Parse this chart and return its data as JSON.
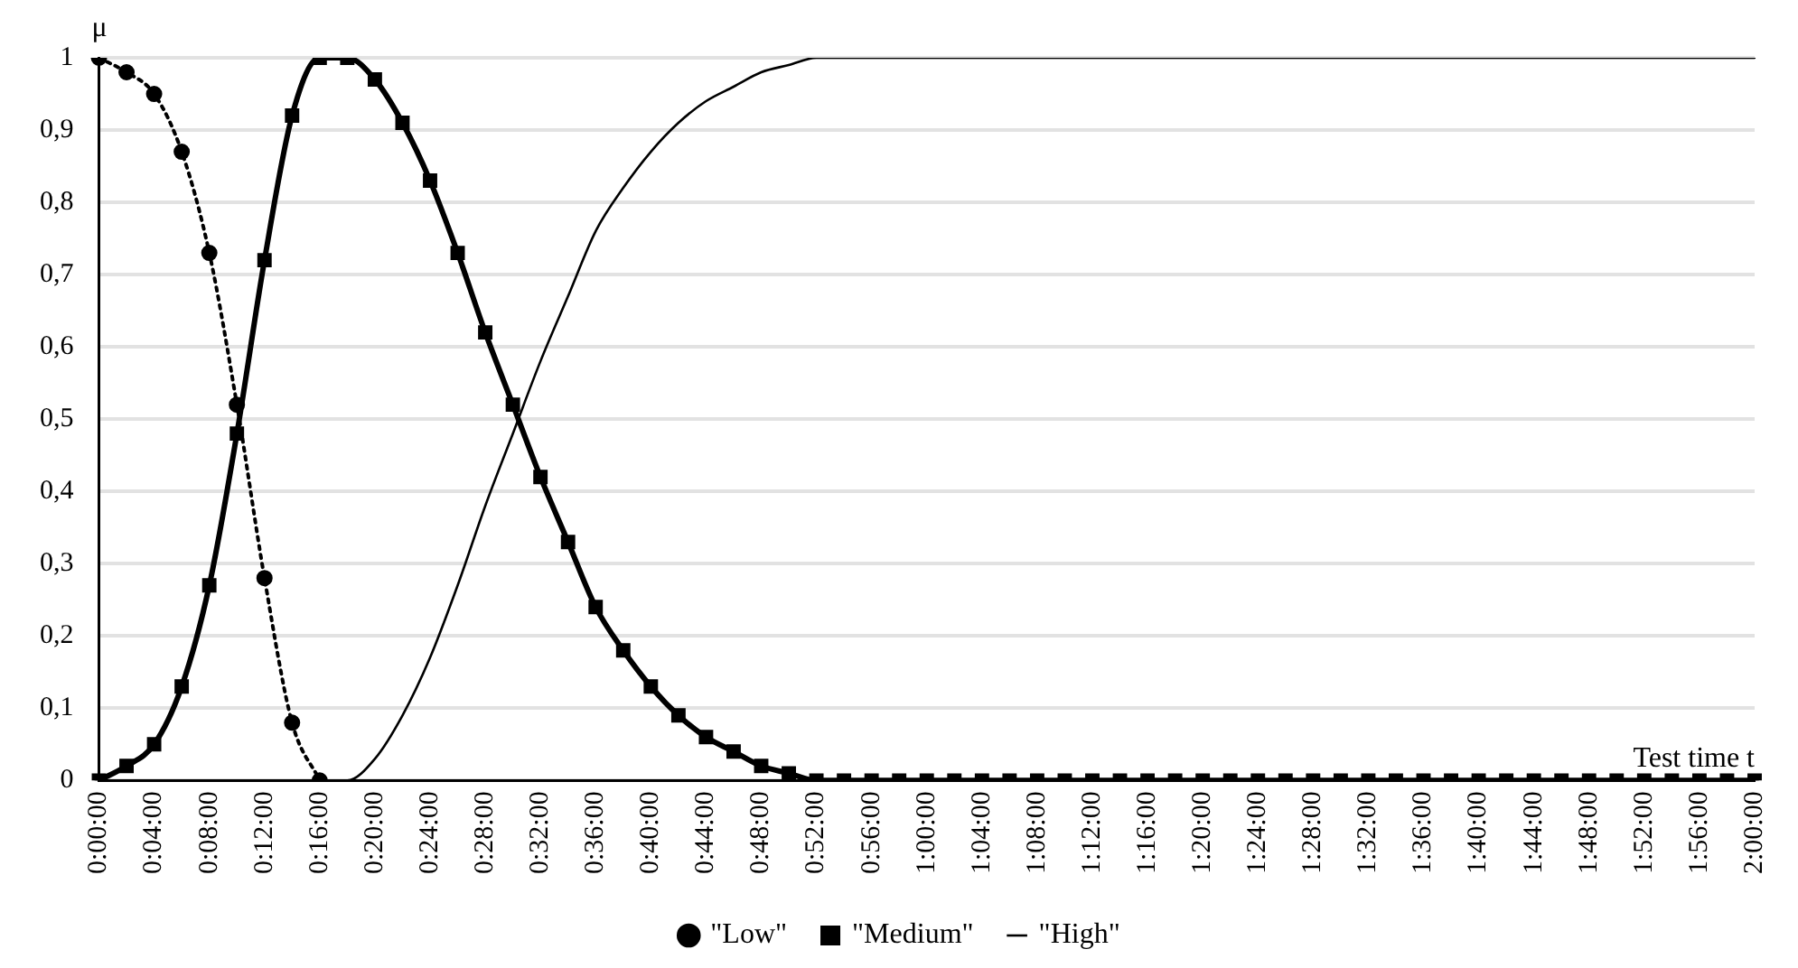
{
  "chart_data": {
    "type": "line",
    "xlabel": "Test time t",
    "ylabel": "μ",
    "categories": [
      "0:00:00",
      null,
      "0:04:00",
      null,
      "0:08:00",
      null,
      "0:12:00",
      null,
      "0:16:00",
      null,
      "0:20:00",
      null,
      "0:24:00",
      null,
      "0:28:00",
      null,
      "0:32:00",
      null,
      "0:36:00",
      null,
      "0:40:00",
      null,
      "0:44:00",
      null,
      "0:48:00",
      null,
      "0:52:00",
      null,
      "0:56:00",
      null,
      "1:00:00",
      null,
      "1:04:00",
      null,
      "1:08:00",
      null,
      "1:12:00",
      null,
      "1:16:00",
      null,
      "1:20:00",
      null,
      "1:24:00",
      null,
      "1:28:00",
      null,
      "1:32:00",
      null,
      "1:36:00",
      null,
      "1:40:00",
      null,
      "1:44:00",
      null,
      "1:48:00",
      null,
      "1:52:00",
      null,
      "1:56:00",
      null,
      "2:00:00"
    ],
    "series": [
      {
        "name": "\"Low\"",
        "color": "#000000",
        "marker": "circle",
        "line_style": "dotted",
        "values": [
          1,
          0.98,
          0.95,
          0.87,
          0.73,
          0.52,
          0.28,
          0.08,
          0,
          null,
          null,
          null,
          null,
          null,
          null,
          null,
          null,
          null,
          null,
          null,
          null,
          null,
          null,
          null,
          null,
          null,
          null,
          null,
          null,
          null,
          null,
          null,
          null,
          null,
          null,
          null,
          null,
          null,
          null,
          null,
          null,
          null,
          null,
          null,
          null,
          null,
          null,
          null,
          null,
          null,
          null,
          null,
          null,
          null,
          null,
          null,
          null,
          null,
          null,
          null,
          null
        ]
      },
      {
        "name": "\"Medium\"",
        "color": "#000000",
        "marker": "square",
        "line_style": "solid",
        "values": [
          0,
          0.02,
          0.05,
          0.13,
          0.27,
          0.48,
          0.72,
          0.92,
          1,
          1,
          0.97,
          0.91,
          0.83,
          0.73,
          0.62,
          0.52,
          0.42,
          0.33,
          0.24,
          0.18,
          0.13,
          0.09,
          0.06,
          0.04,
          0.02,
          0.01,
          0,
          0,
          0,
          0,
          0,
          0,
          0,
          0,
          0,
          0,
          0,
          0,
          0,
          0,
          0,
          0,
          0,
          0,
          0,
          0,
          0,
          0,
          0,
          0,
          0,
          0,
          0,
          0,
          0,
          0,
          0,
          0,
          0,
          0,
          0
        ]
      },
      {
        "name": "\"High\"",
        "color": "#000000",
        "marker": "none",
        "line_style": "solid",
        "values": [
          null,
          null,
          null,
          null,
          null,
          null,
          null,
          null,
          0,
          0,
          0.03,
          0.09,
          0.17,
          0.27,
          0.38,
          0.48,
          0.58,
          0.67,
          0.76,
          0.82,
          0.87,
          0.91,
          0.94,
          0.96,
          0.98,
          0.99,
          1,
          1,
          1,
          1,
          1,
          1,
          1,
          1,
          1,
          1,
          1,
          1,
          1,
          1,
          1,
          1,
          1,
          1,
          1,
          1,
          1,
          1,
          1,
          1,
          1,
          1,
          1,
          1,
          1,
          1,
          1,
          1,
          1,
          1,
          1
        ]
      }
    ],
    "ylim": [
      0,
      1
    ],
    "yticks": [
      0,
      {
        "value": 0.1,
        "label": "0,1"
      },
      {
        "value": 0.2,
        "label": "0,2"
      },
      {
        "value": 0.3,
        "label": "0,3"
      },
      {
        "value": 0.4,
        "label": "0,4"
      },
      {
        "value": 0.5,
        "label": "0,5"
      },
      {
        "value": 0.6,
        "label": "0,6"
      },
      {
        "value": 0.7,
        "label": "0,7"
      },
      {
        "value": 0.8,
        "label": "0,8"
      },
      {
        "value": 0.9,
        "label": "0,9"
      },
      1
    ],
    "grid": "y",
    "legend": "bottom"
  }
}
